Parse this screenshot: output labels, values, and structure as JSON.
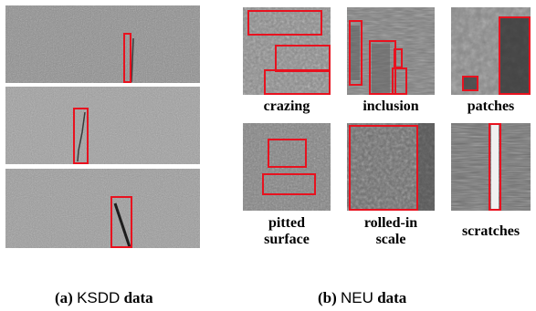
{
  "colors": {
    "bbox": "#e8121f",
    "background": "#ffffff"
  },
  "ksdd": {
    "caption_num": "(a)",
    "caption_name": "KSDD",
    "caption_word": "data",
    "images": [
      {
        "name": "ksdd-sample-1",
        "defect": "crack"
      },
      {
        "name": "ksdd-sample-2",
        "defect": "crack"
      },
      {
        "name": "ksdd-sample-3",
        "defect": "crack"
      }
    ]
  },
  "neu": {
    "caption_num": "(b)",
    "caption_name": "NEU",
    "caption_word": "data",
    "classes": [
      {
        "label": "crazing"
      },
      {
        "label": "inclusion"
      },
      {
        "label": "patches"
      },
      {
        "label": "pitted\nsurface"
      },
      {
        "label": "rolled-in\nscale"
      },
      {
        "label": "scratches"
      }
    ]
  }
}
